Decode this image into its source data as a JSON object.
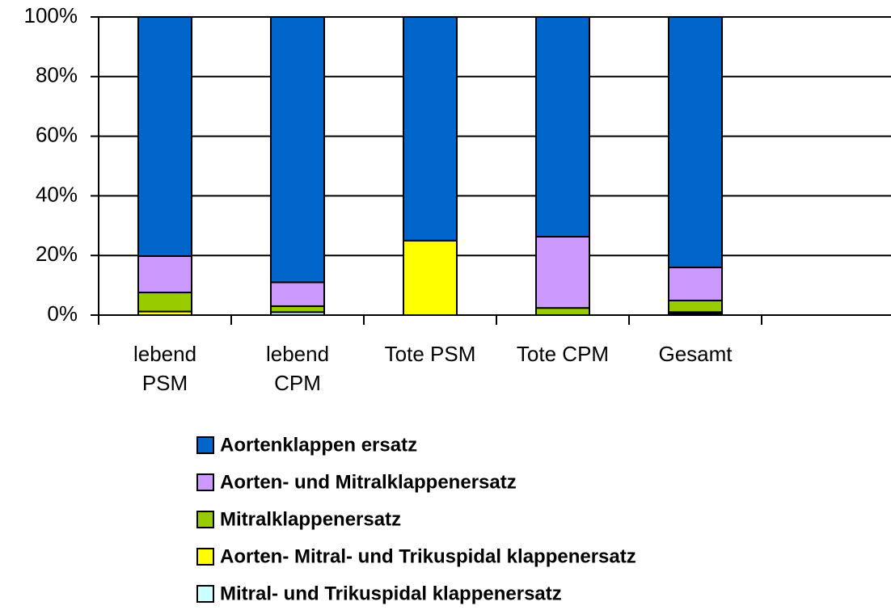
{
  "chart_data": {
    "type": "stacked_bar",
    "categories": [
      "lebend\nPSM",
      "lebend\nCPM",
      "Tote PSM",
      "Tote CPM",
      "Gesamt",
      null
    ],
    "series": [
      {
        "name": "Aortenklappen ersatz",
        "color": "#0066cc",
        "values": [
          80.2,
          89,
          75,
          73.7,
          84,
          null
        ]
      },
      {
        "name": "Aorten- und Mitralklappenersatz",
        "color": "#cc99ff",
        "values": [
          12.2,
          8,
          0,
          23.9,
          11.1,
          null
        ]
      },
      {
        "name": "Mitralklappenersatz",
        "color": "#99cc00",
        "values": [
          6.4,
          2,
          0,
          2.4,
          3.9,
          null
        ]
      },
      {
        "name": "Aorten- Mitral- und Trikuspidal klappenersatz",
        "color": "#ffff00",
        "values": [
          1.2,
          0,
          25,
          0,
          0.5,
          null
        ]
      },
      {
        "name": "Mitral- und Trikuspidal klappenersatz",
        "color": "#ccffff",
        "values": [
          0,
          1,
          0,
          0,
          0.5,
          null
        ]
      }
    ],
    "ylim": [
      0,
      100
    ],
    "yticks": [
      {
        "value": 0,
        "label": "0%"
      },
      {
        "value": 20,
        "label": "20%"
      },
      {
        "value": 40,
        "label": "40%"
      },
      {
        "value": 60,
        "label": "60%"
      },
      {
        "value": 80,
        "label": "80%"
      },
      {
        "value": 100,
        "label": "100%"
      }
    ],
    "grid": true,
    "legend": "bottom"
  }
}
